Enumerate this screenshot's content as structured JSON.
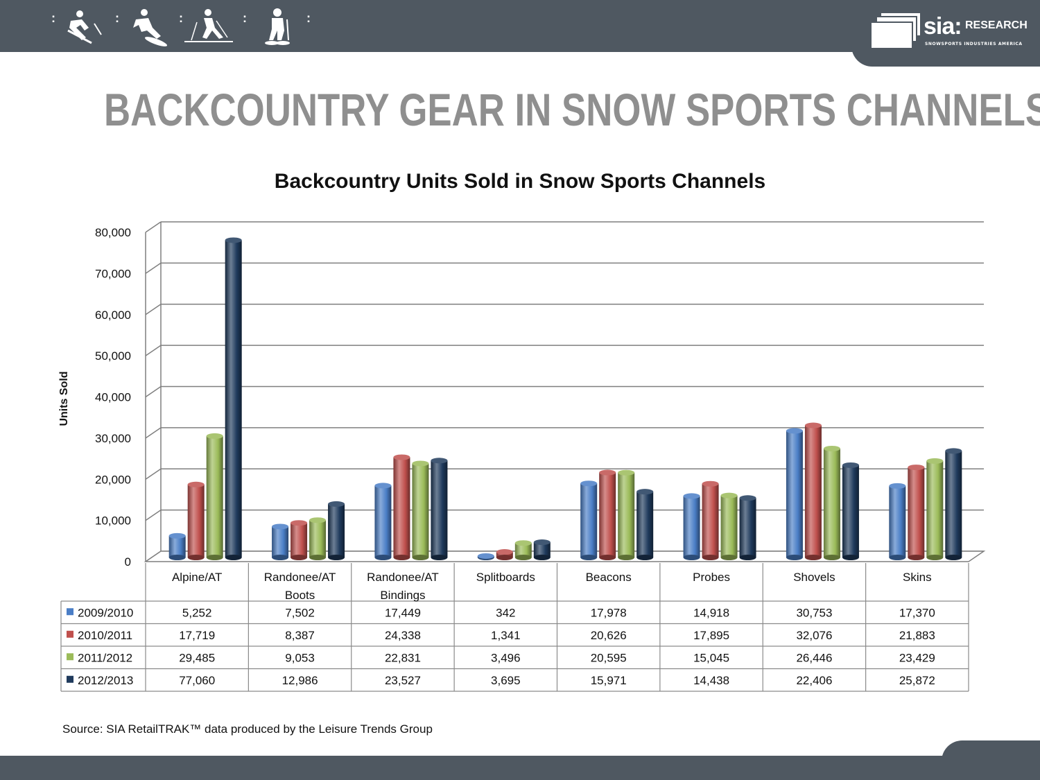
{
  "header": {
    "icons": [
      "skier-icon",
      "snowboarder-icon",
      "cross-country-skier-icon",
      "snowshoer-icon"
    ],
    "separator": ":",
    "logo": {
      "word": "sia:",
      "research": "RESEARCH",
      "subtitle": "SNOWSPORTS INDUSTRIES AMERICA"
    }
  },
  "page_title": "BACKCOUNTRY GEAR IN SNOW SPORTS CHANNELS",
  "source": "Source:  SIA RetailTRAK™ data produced by the Leisure Trends Group",
  "colors": {
    "bar_dark": "#4f5861",
    "title_gray": "#8f8f8f"
  },
  "chart_data": {
    "type": "bar",
    "title": "Backcountry Units Sold in Snow Sports Channels",
    "ylabel": "Units Sold",
    "xlabel": "",
    "ylim": [
      0,
      80000
    ],
    "yticks": [
      "0",
      "10,000",
      "20,000",
      "30,000",
      "40,000",
      "50,000",
      "60,000",
      "70,000",
      "80,000"
    ],
    "grid": true,
    "style": "3d-cylinder",
    "legend_placement": "data-table",
    "categories": [
      [
        "Alpine/AT"
      ],
      [
        "Randonee/AT",
        "Boots"
      ],
      [
        "Randonee/AT",
        "Bindings"
      ],
      [
        "Splitboards"
      ],
      [
        "Beacons"
      ],
      [
        "Probes"
      ],
      [
        "Shovels"
      ],
      [
        "Skins"
      ]
    ],
    "series": [
      {
        "name": "2009/2010",
        "color": "#4a7ec6",
        "values": [
          5252,
          7502,
          17449,
          342,
          17978,
          14918,
          30753,
          17370
        ],
        "labels": [
          "5,252",
          "7,502",
          "17,449",
          "342",
          "17,978",
          "14,918",
          "30,753",
          "17,370"
        ]
      },
      {
        "name": "2010/2011",
        "color": "#c0504d",
        "values": [
          17719,
          8387,
          24338,
          1341,
          20626,
          17895,
          32076,
          21883
        ],
        "labels": [
          "17,719",
          "8,387",
          "24,338",
          "1,341",
          "20,626",
          "17,895",
          "32,076",
          "21,883"
        ]
      },
      {
        "name": "2011/2012",
        "color": "#9bbb59",
        "values": [
          29485,
          9053,
          22831,
          3496,
          20595,
          15045,
          26446,
          23429
        ],
        "labels": [
          "29,485",
          "9,053",
          "22,831",
          "3,496",
          "20,595",
          "15,045",
          "26,446",
          "23,429"
        ]
      },
      {
        "name": "2012/2013",
        "color": "#1f3a5c",
        "values": [
          77060,
          12986,
          23527,
          3695,
          15971,
          14438,
          22406,
          25872
        ],
        "labels": [
          "77,060",
          "12,986",
          "23,527",
          "3,695",
          "15,971",
          "14,438",
          "22,406",
          "25,872"
        ]
      }
    ]
  }
}
